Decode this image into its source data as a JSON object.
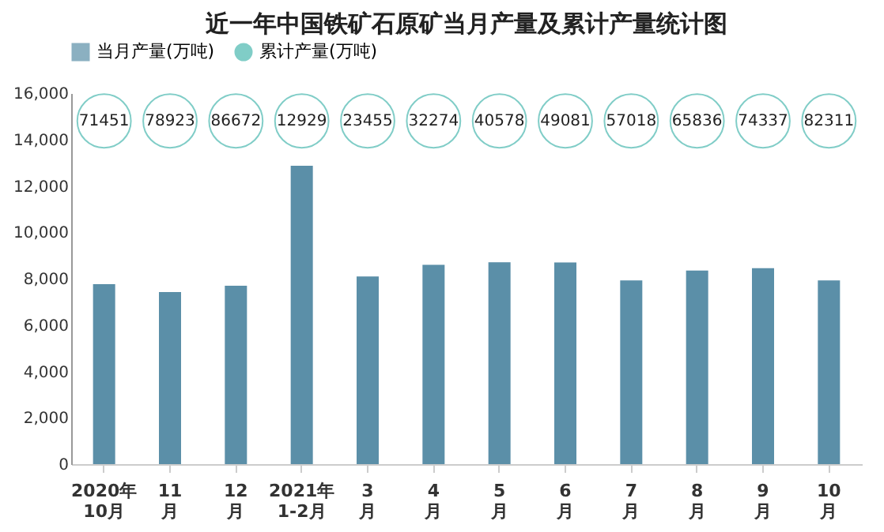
{
  "chart_data": {
    "type": "bar",
    "title": "近一年中国铁矿石原矿当月产量及累计产量统计图",
    "categories": [
      "2020年\n10月",
      "11\n月",
      "12\n月",
      "2021年\n1-2月",
      "3\n月",
      "4\n月",
      "5\n月",
      "6\n月",
      "7\n月",
      "8\n月",
      "9\n月",
      "10\n月"
    ],
    "series": [
      {
        "name": "当月产量(万吨)",
        "color": "#5b8fa8",
        "values": [
          7760,
          7420,
          7690,
          12870,
          8090,
          8600,
          8710,
          8700,
          7920,
          8350,
          8450,
          7920
        ]
      },
      {
        "name": "累计产量(万吨)",
        "type": "scatter",
        "color": "#4bb8b0",
        "values": [
          null,
          null,
          null,
          null,
          null,
          null,
          null,
          null,
          null,
          null,
          null,
          null
        ]
      }
    ],
    "annotations": [
      {
        "text": "71451",
        "x": "2020年\n10月",
        "y": 14800
      },
      {
        "text": "78923",
        "x": "11\n月",
        "y": 14800
      },
      {
        "text": "86672",
        "x": "12\n月",
        "y": 14800
      },
      {
        "text": "12929",
        "x": "2021年\n1-2月",
        "y": 14800
      },
      {
        "text": "23455",
        "x": "3\n月",
        "y": 14800
      },
      {
        "text": "32274",
        "x": "4\n月",
        "y": 14800
      },
      {
        "text": "40578",
        "x": "5\n月",
        "y": 14800
      },
      {
        "text": "49081",
        "x": "6\n月",
        "y": 14800
      },
      {
        "text": "57018",
        "x": "7\n月",
        "y": 14800
      },
      {
        "text": "65836",
        "x": "8\n月",
        "y": 14800
      },
      {
        "text": "74337",
        "x": "9\n月",
        "y": 14800
      },
      {
        "text": "82311",
        "x": "10\n月",
        "y": 14800
      }
    ],
    "ylim": [
      0,
      16000
    ],
    "yticks": [
      0,
      {
        "value": 2000,
        "label": "2,000"
      },
      {
        "value": 4000,
        "label": "4,000"
      },
      {
        "value": 6000,
        "label": "6,000"
      },
      {
        "value": 8000,
        "label": "8,000"
      },
      {
        "value": 10000,
        "label": "10,000"
      },
      {
        "value": 12000,
        "label": "12,000"
      },
      {
        "value": 14000,
        "label": "14,000"
      },
      {
        "value": 16000,
        "label": "16,000"
      }
    ],
    "grid": false,
    "legend": "top"
  }
}
